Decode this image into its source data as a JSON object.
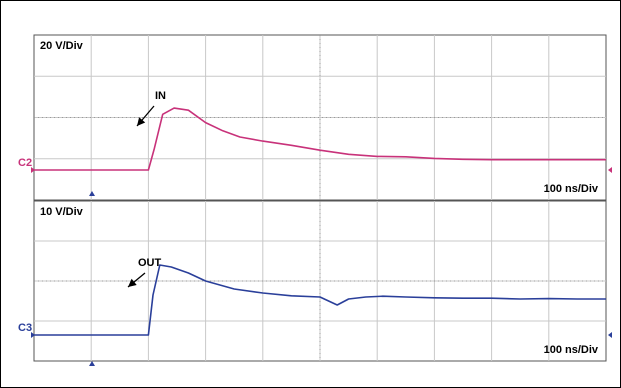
{
  "colors": {
    "ch2": "#c8327a",
    "ch3": "#2a3f9a",
    "grid": "#c8c8c8",
    "frame": "#000000"
  },
  "chart_data": [
    {
      "type": "line",
      "channel": "C2",
      "scale_label": "20 V/Div",
      "time_label": "100 ns/Div",
      "annotation": "IN",
      "grid": true,
      "divisions": {
        "x": 10,
        "y": 4
      },
      "xlim": [
        0,
        10
      ],
      "ylim": [
        0,
        4
      ],
      "series": [
        {
          "name": "IN",
          "x": [
            0,
            2.0,
            2.1,
            2.25,
            2.45,
            2.7,
            3.0,
            3.3,
            3.6,
            4.0,
            4.5,
            5.0,
            5.5,
            6.0,
            6.5,
            7.0,
            7.5,
            8.0,
            8.5,
            9.0,
            9.5,
            10.0
          ],
          "y": [
            0.0,
            0.0,
            0.5,
            1.35,
            1.5,
            1.45,
            1.15,
            0.95,
            0.8,
            0.7,
            0.6,
            0.48,
            0.38,
            0.33,
            0.32,
            0.28,
            0.26,
            0.25,
            0.25,
            0.25,
            0.25,
            0.25
          ]
        }
      ]
    },
    {
      "type": "line",
      "channel": "C3",
      "scale_label": "10 V/Div",
      "time_label": "100 ns/Div",
      "annotation": "OUT",
      "grid": true,
      "divisions": {
        "x": 10,
        "y": 4
      },
      "xlim": [
        0,
        10
      ],
      "ylim": [
        0,
        4
      ],
      "series": [
        {
          "name": "OUT",
          "x": [
            0,
            2.0,
            2.08,
            2.2,
            2.4,
            2.7,
            3.0,
            3.5,
            4.0,
            4.5,
            5.0,
            5.3,
            5.5,
            5.8,
            6.1,
            6.5,
            7.0,
            7.5,
            8.0,
            8.5,
            9.0,
            9.5,
            10.0
          ],
          "y": [
            0.0,
            0.0,
            1.0,
            1.75,
            1.7,
            1.55,
            1.35,
            1.15,
            1.05,
            0.98,
            0.95,
            0.75,
            0.9,
            0.95,
            0.97,
            0.95,
            0.93,
            0.92,
            0.92,
            0.9,
            0.91,
            0.9,
            0.9
          ]
        }
      ]
    }
  ]
}
